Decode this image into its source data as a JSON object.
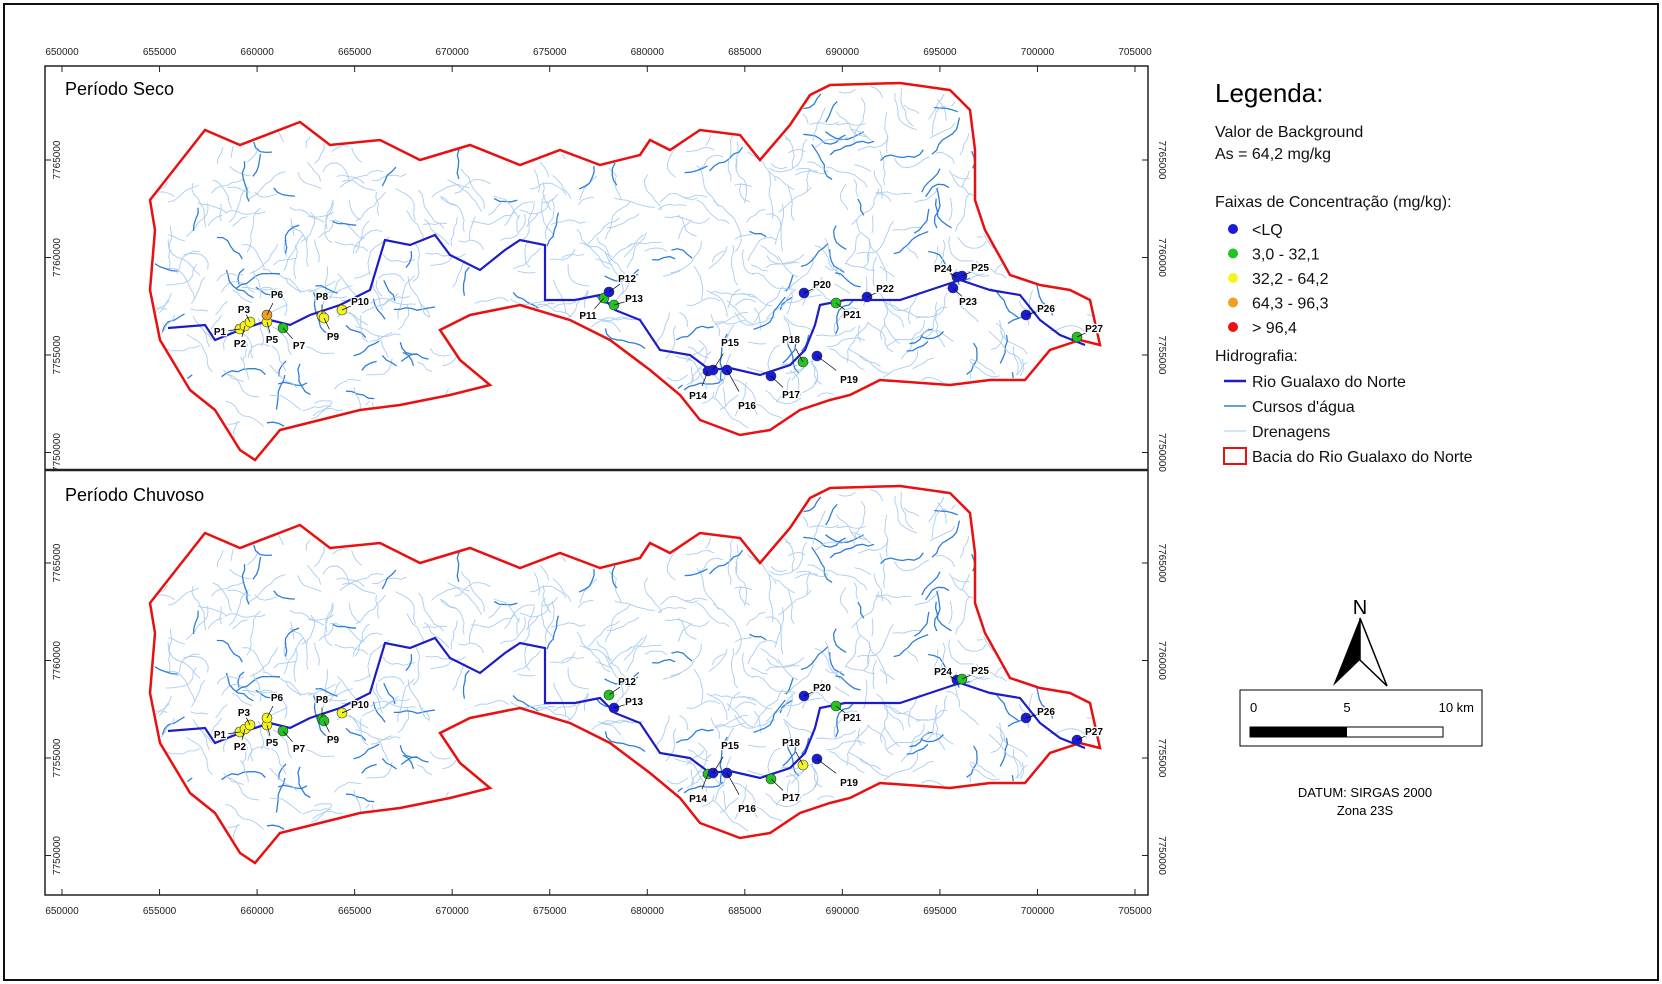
{
  "panels": [
    {
      "title": "Período Seco",
      "points": [
        {
          "label": "P1",
          "color": "#f5f51e"
        },
        {
          "label": "P2",
          "color": "#f5f51e"
        },
        {
          "label": "P3",
          "color": "#f5f51e"
        },
        {
          "label": "P5",
          "color": "#f5f51e"
        },
        {
          "label": "P6",
          "color": "#f0a020"
        },
        {
          "label": "P7",
          "color": "#22c422"
        },
        {
          "label": "P8",
          "color": "#f5f51e"
        },
        {
          "label": "P9",
          "color": "#f5f51e"
        },
        {
          "label": "P10",
          "color": "#f5f51e"
        },
        {
          "label": "P11",
          "color": "#22c422"
        },
        {
          "label": "P12",
          "color": "#1a1adb"
        },
        {
          "label": "P13",
          "color": "#22c422"
        },
        {
          "label": "P14",
          "color": "#1a1adb"
        },
        {
          "label": "P15",
          "color": "#1a1adb"
        },
        {
          "label": "P16",
          "color": "#1a1adb"
        },
        {
          "label": "P17",
          "color": "#1a1adb"
        },
        {
          "label": "P18",
          "color": "#22c422"
        },
        {
          "label": "P19",
          "color": "#1a1adb"
        },
        {
          "label": "P20",
          "color": "#1a1adb"
        },
        {
          "label": "P21",
          "color": "#22c422"
        },
        {
          "label": "P22",
          "color": "#1a1adb"
        },
        {
          "label": "P23",
          "color": "#1a1adb"
        },
        {
          "label": "P24",
          "color": "#1a1adb"
        },
        {
          "label": "P25",
          "color": "#1a1adb"
        },
        {
          "label": "P26",
          "color": "#1a1adb"
        },
        {
          "label": "P27",
          "color": "#22c422"
        }
      ]
    },
    {
      "title": "Período Chuvoso",
      "points": [
        {
          "label": "P1",
          "color": "#f5f51e"
        },
        {
          "label": "P2",
          "color": "#f5f51e"
        },
        {
          "label": "P3",
          "color": "#f5f51e"
        },
        {
          "label": "P5",
          "color": "#f5f51e"
        },
        {
          "label": "P6",
          "color": "#f5f51e"
        },
        {
          "label": "P7",
          "color": "#22c422"
        },
        {
          "label": "P8",
          "color": "#22c422"
        },
        {
          "label": "P9",
          "color": "#22c422"
        },
        {
          "label": "P10",
          "color": "#f5f51e"
        },
        {
          "label": "P12",
          "color": "#22c422"
        },
        {
          "label": "P13",
          "color": "#1a1adb"
        },
        {
          "label": "P14",
          "color": "#22c422"
        },
        {
          "label": "P15",
          "color": "#1a1adb"
        },
        {
          "label": "P16",
          "color": "#1a1adb"
        },
        {
          "label": "P17",
          "color": "#22c422"
        },
        {
          "label": "P18",
          "color": "#f5f51e"
        },
        {
          "label": "P19",
          "color": "#1a1adb"
        },
        {
          "label": "P20",
          "color": "#1a1adb"
        },
        {
          "label": "P21",
          "color": "#22c422"
        },
        {
          "label": "P24",
          "color": "#1a1adb"
        },
        {
          "label": "P25",
          "color": "#22c422"
        },
        {
          "label": "P26",
          "color": "#1a1adb"
        },
        {
          "label": "P27",
          "color": "#1a1adb"
        }
      ]
    }
  ],
  "x_ticks": [
    650000,
    655000,
    660000,
    665000,
    670000,
    675000,
    680000,
    685000,
    690000,
    695000,
    700000,
    705000
  ],
  "y_ticks": [
    7750000,
    7755000,
    7760000,
    7765000
  ],
  "legend": {
    "title": "Legenda:",
    "background_label": "Valor de Background",
    "background_value": "As = 64,2 mg/kg",
    "classes_title": "Faixas de Concentração (mg/kg):",
    "classes": [
      {
        "label": "<LQ",
        "color": "#1a1adb"
      },
      {
        "label": "3,0 - 32,1",
        "color": "#22c422"
      },
      {
        "label": "32,2 - 64,2",
        "color": "#f5f51e"
      },
      {
        "label": "64,3 - 96,3",
        "color": "#f0a020"
      },
      {
        "label": "> 96,4",
        "color": "#ee1111"
      }
    ],
    "hydro_title": "Hidrografia:",
    "hydro": [
      {
        "label": "Rio Gualaxo do Norte",
        "color": "#1c1cc8"
      },
      {
        "label": "Cursos d'água",
        "color": "#2f7fd8"
      },
      {
        "label": "Drenagens",
        "color": "#a9cdf2"
      },
      {
        "label": "Bacia do Rio Gualaxo do Norte",
        "color": "#e81010"
      }
    ]
  },
  "north": "N",
  "scale": {
    "labels": [
      "0",
      "5",
      "10 km"
    ]
  },
  "datum": [
    "DATUM: SIRGAS 2000",
    "Zona 23S"
  ]
}
